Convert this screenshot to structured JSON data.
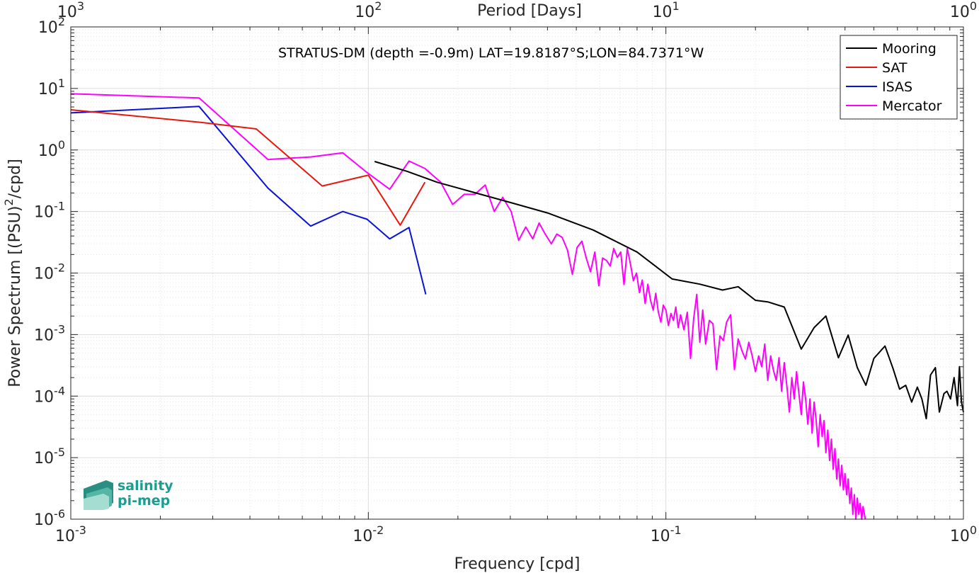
{
  "chart_data": {
    "type": "line",
    "title": "STRATUS-DM (depth =-0.9m) LAT=19.8187°S;LON=84.7371°W",
    "xlabel": "Frequency [cpd]",
    "ylabel": "Power Spectrum [(PSU)²/cpd]",
    "top_xlabel": "Period [Days]",
    "xscale": "log",
    "yscale": "log",
    "xlim": [
      0.001,
      1
    ],
    "ylim": [
      1e-06,
      100
    ],
    "grid": true,
    "legend_position": "top-right",
    "x_ticks": [
      {
        "value": 0.001,
        "base": "10",
        "exp": "-3"
      },
      {
        "value": 0.01,
        "base": "10",
        "exp": "-2"
      },
      {
        "value": 0.1,
        "base": "10",
        "exp": "-1"
      },
      {
        "value": 1,
        "base": "10",
        "exp": "0"
      }
    ],
    "top_x_ticks": [
      {
        "value": 0.001,
        "base": "10",
        "exp": "3"
      },
      {
        "value": 0.01,
        "base": "10",
        "exp": "2"
      },
      {
        "value": 0.1,
        "base": "10",
        "exp": "1"
      },
      {
        "value": 1,
        "base": "10",
        "exp": "0"
      }
    ],
    "y_ticks": [
      {
        "value": 1e-06,
        "base": "10",
        "exp": "-6"
      },
      {
        "value": 1e-05,
        "base": "10",
        "exp": "-5"
      },
      {
        "value": 0.0001,
        "base": "10",
        "exp": "-4"
      },
      {
        "value": 0.001,
        "base": "10",
        "exp": "-3"
      },
      {
        "value": 0.01,
        "base": "10",
        "exp": "-2"
      },
      {
        "value": 0.1,
        "base": "10",
        "exp": "-1"
      },
      {
        "value": 1,
        "base": "10",
        "exp": "0"
      },
      {
        "value": 10,
        "base": "10",
        "exp": "1"
      },
      {
        "value": 100,
        "base": "10",
        "exp": "2"
      }
    ],
    "series": [
      {
        "name": "Mooring",
        "color": "#000000",
        "points": [
          [
            0.0105,
            0.65
          ],
          [
            0.0135,
            0.45
          ],
          [
            0.017,
            0.3
          ],
          [
            0.023,
            0.2
          ],
          [
            0.03,
            0.14
          ],
          [
            0.04,
            0.095
          ],
          [
            0.057,
            0.05
          ],
          [
            0.08,
            0.022
          ],
          [
            0.105,
            0.008
          ],
          [
            0.13,
            0.0066
          ],
          [
            0.155,
            0.0053
          ],
          [
            0.175,
            0.006
          ],
          [
            0.2,
            0.0036
          ],
          [
            0.22,
            0.0034
          ],
          [
            0.25,
            0.0028
          ],
          [
            0.285,
            0.00058
          ],
          [
            0.315,
            0.0013
          ],
          [
            0.345,
            0.002
          ],
          [
            0.38,
            0.00042
          ],
          [
            0.41,
            0.00098
          ],
          [
            0.44,
            0.00029
          ],
          [
            0.47,
            0.00015
          ],
          [
            0.5,
            0.00041
          ],
          [
            0.545,
            0.00065
          ],
          [
            0.58,
            0.00028
          ],
          [
            0.61,
            0.00013
          ],
          [
            0.64,
            0.00015
          ],
          [
            0.67,
            8e-05
          ],
          [
            0.7,
            0.00014
          ],
          [
            0.725,
            9e-05
          ],
          [
            0.75,
            4.3e-05
          ],
          [
            0.775,
            0.00022
          ],
          [
            0.805,
            0.00029
          ],
          [
            0.83,
            5.5e-05
          ],
          [
            0.86,
            0.00011
          ],
          [
            0.88,
            0.00012
          ],
          [
            0.905,
            9e-05
          ],
          [
            0.93,
            0.0002
          ],
          [
            0.955,
            7e-05
          ],
          [
            0.97,
            0.0003
          ],
          [
            0.985,
            8e-05
          ],
          [
            1.0,
            5.5e-05
          ]
        ]
      },
      {
        "name": "SAT",
        "color": "#e8170d",
        "points": [
          [
            0.001,
            4.5
          ],
          [
            0.00275,
            2.8
          ],
          [
            0.0042,
            2.2
          ],
          [
            0.007,
            0.26
          ],
          [
            0.01,
            0.39
          ],
          [
            0.0128,
            0.06
          ],
          [
            0.0155,
            0.3
          ]
        ]
      },
      {
        "name": "ISAS",
        "color": "#0a12d6",
        "points": [
          [
            0.001,
            4.0
          ],
          [
            0.0027,
            5.1
          ],
          [
            0.0046,
            0.24
          ],
          [
            0.0064,
            0.058
          ],
          [
            0.0082,
            0.1
          ],
          [
            0.0099,
            0.075
          ],
          [
            0.0118,
            0.036
          ],
          [
            0.0137,
            0.055
          ],
          [
            0.0156,
            0.0045
          ]
        ]
      },
      {
        "name": "Mercator",
        "color": "#ff00ff",
        "points": [
          [
            0.001,
            8.2
          ],
          [
            0.0027,
            7.0
          ],
          [
            0.0046,
            0.7
          ],
          [
            0.0064,
            0.77
          ],
          [
            0.0082,
            0.9
          ],
          [
            0.0099,
            0.43
          ],
          [
            0.0118,
            0.23
          ],
          [
            0.0137,
            0.66
          ],
          [
            0.0155,
            0.5
          ],
          [
            0.0175,
            0.3
          ],
          [
            0.0192,
            0.13
          ],
          [
            0.021,
            0.19
          ],
          [
            0.0228,
            0.19
          ],
          [
            0.0247,
            0.27
          ],
          [
            0.0265,
            0.1
          ],
          [
            0.0283,
            0.17
          ],
          [
            0.0302,
            0.1
          ],
          [
            0.032,
            0.034
          ],
          [
            0.0338,
            0.056
          ],
          [
            0.0357,
            0.036
          ],
          [
            0.0375,
            0.065
          ],
          [
            0.0393,
            0.043
          ],
          [
            0.0412,
            0.03
          ],
          [
            0.043,
            0.043
          ],
          [
            0.0448,
            0.038
          ],
          [
            0.0467,
            0.0235
          ],
          [
            0.0485,
            0.0095
          ],
          [
            0.0503,
            0.026
          ],
          [
            0.0522,
            0.033
          ],
          [
            0.054,
            0.0175
          ],
          [
            0.0558,
            0.0105
          ],
          [
            0.0577,
            0.022
          ],
          [
            0.0595,
            0.0062
          ],
          [
            0.0613,
            0.0175
          ],
          [
            0.0632,
            0.016
          ],
          [
            0.065,
            0.013
          ],
          [
            0.0668,
            0.025
          ],
          [
            0.0687,
            0.018
          ],
          [
            0.0705,
            0.022
          ],
          [
            0.0723,
            0.0065
          ],
          [
            0.0742,
            0.025
          ],
          [
            0.076,
            0.014
          ],
          [
            0.0778,
            0.0075
          ],
          [
            0.0797,
            0.01
          ],
          [
            0.0815,
            0.0048
          ],
          [
            0.0833,
            0.0077
          ],
          [
            0.0852,
            0.0032
          ],
          [
            0.087,
            0.0066
          ],
          [
            0.0888,
            0.0036
          ],
          [
            0.0907,
            0.0025
          ],
          [
            0.0925,
            0.0047
          ],
          [
            0.0943,
            0.0023
          ],
          [
            0.0962,
            0.0016
          ],
          [
            0.098,
            0.003
          ],
          [
            0.1,
            0.0025
          ],
          [
            0.102,
            0.0014
          ],
          [
            0.104,
            0.0022
          ],
          [
            0.106,
            0.0017
          ],
          [
            0.108,
            0.0028
          ],
          [
            0.11,
            0.0013
          ],
          [
            0.112,
            0.0021
          ],
          [
            0.115,
            0.0012
          ],
          [
            0.118,
            0.0023
          ],
          [
            0.121,
            0.00041
          ],
          [
            0.124,
            0.0018
          ],
          [
            0.127,
            0.0045
          ],
          [
            0.13,
            0.00075
          ],
          [
            0.133,
            0.0025
          ],
          [
            0.136,
            0.0007
          ],
          [
            0.14,
            0.0017
          ],
          [
            0.144,
            0.0015
          ],
          [
            0.148,
            0.00027
          ],
          [
            0.152,
            0.00095
          ],
          [
            0.156,
            0.0008
          ],
          [
            0.16,
            0.0016
          ],
          [
            0.165,
            0.0021
          ],
          [
            0.17,
            0.00027
          ],
          [
            0.175,
            0.00085
          ],
          [
            0.18,
            0.00055
          ],
          [
            0.185,
            0.0004
          ],
          [
            0.19,
            0.00075
          ],
          [
            0.195,
            0.00045
          ],
          [
            0.2,
            0.00025
          ],
          [
            0.205,
            0.00045
          ],
          [
            0.21,
            0.0003
          ],
          [
            0.215,
            0.0007
          ],
          [
            0.22,
            0.00018
          ],
          [
            0.225,
            0.00045
          ],
          [
            0.23,
            0.00026
          ],
          [
            0.235,
            0.00018
          ],
          [
            0.24,
            0.00042
          ],
          [
            0.245,
            0.00012
          ],
          [
            0.25,
            0.00035
          ],
          [
            0.255,
            0.00015
          ],
          [
            0.26,
            5.5e-05
          ],
          [
            0.265,
            0.0002
          ],
          [
            0.27,
            9e-05
          ],
          [
            0.275,
            0.00025
          ],
          [
            0.28,
            0.00011
          ],
          [
            0.285,
            5e-05
          ],
          [
            0.29,
            0.00017
          ],
          [
            0.295,
            9e-05
          ],
          [
            0.3,
            3.5e-05
          ],
          [
            0.305,
            9e-05
          ],
          [
            0.31,
            2.5e-05
          ],
          [
            0.315,
            8e-05
          ],
          [
            0.32,
            4e-05
          ],
          [
            0.325,
            1.5e-05
          ],
          [
            0.33,
            5e-05
          ],
          [
            0.335,
            2.2e-05
          ],
          [
            0.34,
            4e-05
          ],
          [
            0.345,
            1.2e-05
          ],
          [
            0.35,
            2.8e-05
          ],
          [
            0.355,
            9e-06
          ],
          [
            0.36,
            2e-05
          ],
          [
            0.365,
            6.5e-06
          ],
          [
            0.37,
            1.4e-05
          ],
          [
            0.375,
            4.5e-06
          ],
          [
            0.38,
            9.5e-06
          ],
          [
            0.385,
            3.5e-06
          ],
          [
            0.39,
            7.5e-06
          ],
          [
            0.395,
            3e-06
          ],
          [
            0.4,
            5.5e-06
          ],
          [
            0.405,
            2.5e-06
          ],
          [
            0.41,
            4.5e-06
          ],
          [
            0.415,
            1.8e-06
          ],
          [
            0.42,
            3.2e-06
          ],
          [
            0.425,
            1.2e-06
          ],
          [
            0.43,
            2.5e-06
          ],
          [
            0.435,
            1e-06
          ],
          [
            0.44,
            2.2e-06
          ],
          [
            0.445,
            1.2e-06
          ],
          [
            0.45,
            1.8e-06
          ],
          [
            0.455,
            1e-06
          ],
          [
            0.46,
            1.6e-06
          ],
          [
            0.465,
            1.2e-06
          ],
          [
            0.468,
            1e-06
          ]
        ]
      }
    ]
  },
  "logo": {
    "line1": "salinity",
    "line2": "pi-mep",
    "color": "#1a9e8f"
  }
}
